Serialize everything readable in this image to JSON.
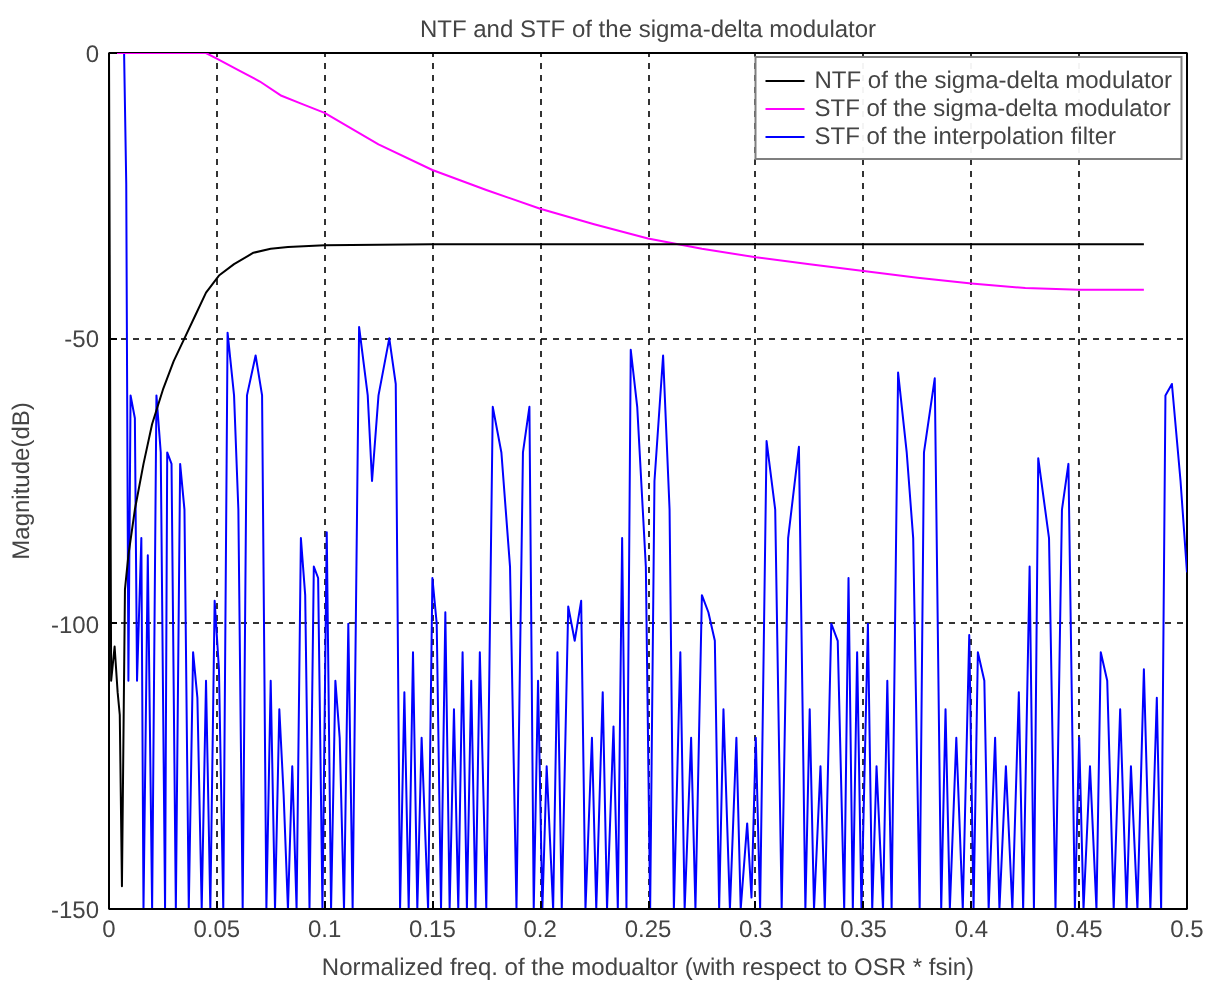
{
  "chart_data": {
    "type": "line",
    "title": "NTF and STF of the sigma-delta modulator",
    "xlabel": "Normalized freq. of the modualtor (with respect to OSR * fsin)",
    "ylabel": "Magnitude(dB)",
    "xlim": [
      0,
      0.5
    ],
    "ylim": [
      -150,
      0
    ],
    "xticks": [
      0,
      0.05,
      0.1,
      0.15,
      0.2,
      0.25,
      0.3,
      0.35,
      0.4,
      0.45,
      0.5
    ],
    "yticks": [
      -150,
      -100,
      -50,
      0
    ],
    "grid": true,
    "legend": "top right",
    "line_style": "solid",
    "marker": "none",
    "series": [
      {
        "name": "NTF of the sigma-delta modulator",
        "color": "#000000",
        "x": [
          0,
          0.001,
          0.0026,
          0.004,
          0.005,
          0.006,
          0.0074,
          0.009,
          0.012,
          0.016,
          0.02,
          0.025,
          0.03,
          0.035,
          0.04,
          0.045,
          0.051,
          0.058,
          0.067,
          0.075,
          0.083,
          0.1,
          0.15,
          0.2,
          0.3,
          0.4,
          0.48
        ],
        "values": [
          0,
          -110,
          -104,
          -112,
          -116,
          -146,
          -94,
          -88,
          -80,
          -72,
          -65,
          -59,
          -54,
          -50,
          -46,
          -42,
          -39,
          -37,
          -35,
          -34.3,
          -34,
          -33.7,
          -33.5,
          -33.5,
          -33.5,
          -33.5,
          -33.5
        ]
      },
      {
        "name": "STF of the sigma-delta modulator",
        "color": "#ff00ff",
        "x": [
          0,
          0.045,
          0.05,
          0.06,
          0.07,
          0.08,
          0.09,
          0.1,
          0.125,
          0.15,
          0.175,
          0.2,
          0.225,
          0.25,
          0.275,
          0.3,
          0.325,
          0.35,
          0.375,
          0.4,
          0.425,
          0.45,
          0.48
        ],
        "values": [
          0,
          0,
          -1,
          -3,
          -5,
          -7.5,
          -9,
          -10.5,
          -16,
          -20.5,
          -24,
          -27.3,
          -30,
          -32.5,
          -34.3,
          -35.8,
          -37,
          -38.2,
          -39.4,
          -40.4,
          -41.2,
          -41.5,
          -41.5
        ]
      },
      {
        "name": "STF of the interpolation filter",
        "color": "#0000ff",
        "x": [
          0,
          0.007,
          0.008,
          0.009,
          0.01,
          0.012,
          0.013,
          0.015,
          0.016,
          0.018,
          0.02,
          0.022,
          0.024,
          0.026,
          0.027,
          0.029,
          0.031,
          0.033,
          0.035,
          0.037,
          0.039,
          0.041,
          0.043,
          0.045,
          0.047,
          0.049,
          0.051,
          0.053,
          0.055,
          0.058,
          0.06,
          0.062,
          0.064,
          0.068,
          0.071,
          0.073,
          0.075,
          0.077,
          0.079,
          0.081,
          0.083,
          0.085,
          0.087,
          0.089,
          0.091,
          0.093,
          0.095,
          0.097,
          0.099,
          0.101,
          0.103,
          0.105,
          0.107,
          0.109,
          0.111,
          0.113,
          0.116,
          0.12,
          0.122,
          0.125,
          0.13,
          0.133,
          0.135,
          0.137,
          0.139,
          0.141,
          0.143,
          0.145,
          0.148,
          0.15,
          0.152,
          0.154,
          0.156,
          0.158,
          0.16,
          0.162,
          0.164,
          0.166,
          0.168,
          0.17,
          0.172,
          0.175,
          0.178,
          0.182,
          0.186,
          0.189,
          0.192,
          0.195,
          0.197,
          0.199,
          0.201,
          0.203,
          0.206,
          0.208,
          0.21,
          0.213,
          0.216,
          0.219,
          0.221,
          0.224,
          0.226,
          0.229,
          0.231,
          0.234,
          0.236,
          0.238,
          0.24,
          0.242,
          0.245,
          0.249,
          0.251,
          0.253,
          0.257,
          0.26,
          0.262,
          0.265,
          0.267,
          0.27,
          0.272,
          0.275,
          0.278,
          0.281,
          0.283,
          0.285,
          0.288,
          0.291,
          0.293,
          0.296,
          0.298,
          0.3,
          0.302,
          0.305,
          0.309,
          0.312,
          0.315,
          0.32,
          0.323,
          0.325,
          0.327,
          0.33,
          0.332,
          0.335,
          0.338,
          0.341,
          0.343,
          0.345,
          0.347,
          0.349,
          0.352,
          0.354,
          0.356,
          0.359,
          0.361,
          0.363,
          0.366,
          0.37,
          0.373,
          0.376,
          0.378,
          0.383,
          0.386,
          0.388,
          0.39,
          0.393,
          0.396,
          0.399,
          0.401,
          0.403,
          0.406,
          0.408,
          0.411,
          0.413,
          0.416,
          0.419,
          0.422,
          0.424,
          0.427,
          0.429,
          0.431,
          0.436,
          0.439,
          0.442,
          0.445,
          0.448,
          0.45,
          0.452,
          0.455,
          0.458,
          0.46,
          0.463,
          0.466,
          0.469,
          0.472,
          0.474,
          0.477,
          0.48,
          0.483,
          0.486,
          0.488,
          0.49,
          0.493,
          0.497,
          0.5
        ],
        "values": [
          0,
          0,
          -23,
          -110,
          -60,
          -64,
          -110,
          -85,
          -150,
          -88,
          -150,
          -60,
          -70,
          -150,
          -70,
          -72,
          -150,
          -72,
          -80,
          -150,
          -105,
          -113,
          -150,
          -110,
          -150,
          -96,
          -108,
          -150,
          -49,
          -60,
          -80,
          -150,
          -60,
          -53,
          -60,
          -150,
          -110,
          -150,
          -115,
          -130,
          -150,
          -125,
          -150,
          -85,
          -95,
          -150,
          -90,
          -92,
          -150,
          -84,
          -150,
          -110,
          -120,
          -150,
          -100,
          -150,
          -48,
          -60,
          -75,
          -60,
          -50,
          -58,
          -150,
          -112,
          -150,
          -105,
          -150,
          -120,
          -150,
          -92,
          -100,
          -150,
          -98,
          -150,
          -115,
          -150,
          -105,
          -150,
          -110,
          -150,
          -105,
          -150,
          -62,
          -70,
          -90,
          -150,
          -70,
          -62,
          -150,
          -110,
          -150,
          -125,
          -150,
          -105,
          -150,
          -97,
          -103,
          -96,
          -150,
          -120,
          -150,
          -112,
          -150,
          -118,
          -150,
          -85,
          -150,
          -52,
          -62,
          -90,
          -150,
          -75,
          -53,
          -80,
          -150,
          -105,
          -150,
          -120,
          -150,
          -95,
          -98,
          -103,
          -150,
          -115,
          -150,
          -120,
          -150,
          -135,
          -148,
          -120,
          -150,
          -68,
          -80,
          -150,
          -85,
          -69,
          -150,
          -115,
          -150,
          -125,
          -150,
          -100,
          -103,
          -150,
          -92,
          -150,
          -105,
          -150,
          -100,
          -150,
          -125,
          -150,
          -110,
          -150,
          -56,
          -70,
          -85,
          -150,
          -70,
          -57,
          -150,
          -115,
          -150,
          -120,
          -150,
          -102,
          -150,
          -105,
          -110,
          -150,
          -120,
          -150,
          -125,
          -150,
          -112,
          -150,
          -90,
          -150,
          -71,
          -85,
          -150,
          -80,
          -72,
          -150,
          -120,
          -150,
          -125,
          -150,
          -105,
          -110,
          -150,
          -115,
          -150,
          -125,
          -150,
          -108,
          -150,
          -113,
          -150,
          -60,
          -58,
          -75,
          -91
        ]
      }
    ]
  }
}
